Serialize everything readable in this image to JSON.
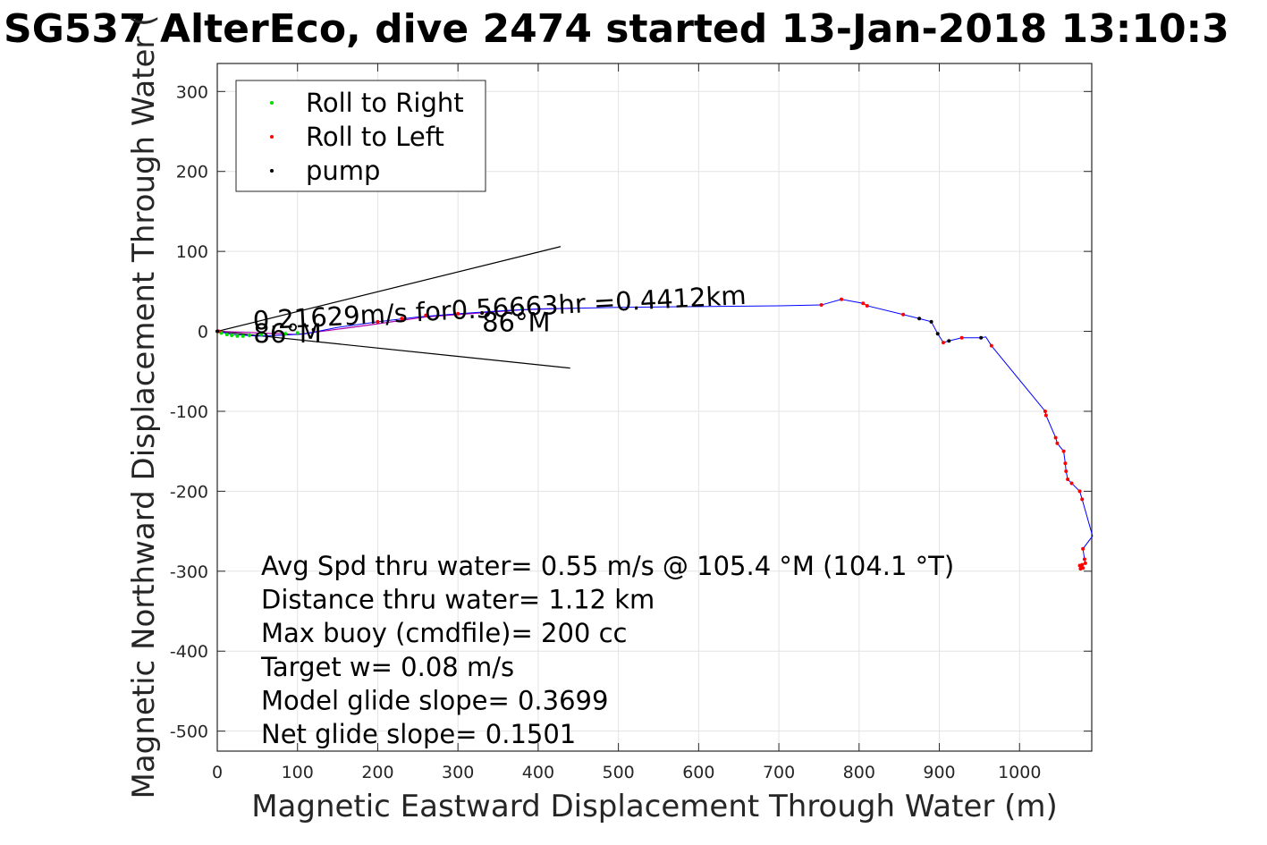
{
  "chart_data": {
    "type": "scatter",
    "title": "SG537 AlterEco, dive 2474 started 13-Jan-2018 13:10:3",
    "xlabel": "Magnetic Eastward Displacement Through Water (m)",
    "ylabel": "Magnetic Northward Displacement Through Water (",
    "xlim": [
      0,
      1090
    ],
    "ylim": [
      -525,
      335
    ],
    "xticks": [
      0,
      100,
      200,
      300,
      400,
      500,
      600,
      700,
      800,
      900,
      1000
    ],
    "yticks": [
      300,
      200,
      100,
      0,
      -100,
      -200,
      -300,
      -400,
      -500
    ],
    "xtick_labels": [
      "0",
      "100",
      "200",
      "300",
      "400",
      "500",
      "600",
      "700",
      "800",
      "900",
      "1000"
    ],
    "ytick_labels": [
      "300",
      "200",
      "100",
      "0",
      "-100",
      "-200",
      "-300",
      "-400",
      "-500"
    ],
    "grid": true,
    "legend_position": "top-left",
    "colors": {
      "track": "#0000ff",
      "roll_right": "#00dd00",
      "roll_left": "#ff0000",
      "pump": "#000000",
      "heading_line": "#000000",
      "leg_line": "#aa00aa",
      "grid": "#e3e3e3",
      "axes": "#262626"
    },
    "series": [
      {
        "name": "Roll to Right",
        "color": "#00dd00",
        "points": [
          [
            5,
            -2
          ],
          [
            12,
            -4
          ],
          [
            18,
            -5
          ],
          [
            25,
            -6
          ],
          [
            32,
            -6
          ],
          [
            40,
            -5
          ],
          [
            55,
            -4
          ],
          [
            70,
            -3
          ],
          [
            85,
            -3
          ],
          [
            100,
            -2
          ],
          [
            380,
            29
          ]
        ]
      },
      {
        "name": "Roll to Left",
        "color": "#ff0000",
        "points": [
          [
            2,
            0
          ],
          [
            120,
            2
          ],
          [
            200,
            12
          ],
          [
            230,
            16
          ],
          [
            260,
            20
          ],
          [
            300,
            22
          ],
          [
            330,
            23
          ],
          [
            753,
            33
          ],
          [
            778,
            40
          ],
          [
            805,
            35
          ],
          [
            810,
            32
          ],
          [
            855,
            21
          ],
          [
            905,
            -14
          ],
          [
            928,
            -8
          ],
          [
            965,
            -18
          ],
          [
            1032,
            -100
          ],
          [
            1033,
            -105
          ],
          [
            1045,
            -133
          ],
          [
            1047,
            -140
          ],
          [
            1055,
            -150
          ],
          [
            1057,
            -165
          ],
          [
            1058,
            -175
          ],
          [
            1060,
            -185
          ],
          [
            1065,
            -190
          ],
          [
            1075,
            -200
          ],
          [
            1078,
            -210
          ],
          [
            1079,
            -272
          ],
          [
            1081,
            -285
          ],
          [
            1082,
            -290
          ],
          [
            1078,
            -292
          ],
          [
            1079,
            -296
          ],
          [
            1075,
            -293
          ],
          [
            1076,
            -297
          ]
        ]
      },
      {
        "name": "pump",
        "color": "#000000",
        "points": [
          [
            0,
            0
          ],
          [
            120,
            2
          ],
          [
            330,
            23
          ],
          [
            875,
            16
          ],
          [
            890,
            12
          ],
          [
            898,
            -3
          ],
          [
            912,
            -12
          ],
          [
            952,
            -8
          ]
        ]
      }
    ],
    "track": [
      [
        0,
        0
      ],
      [
        20,
        -4
      ],
      [
        50,
        -6
      ],
      [
        80,
        -5
      ],
      [
        110,
        -3
      ],
      [
        150,
        5
      ],
      [
        200,
        12
      ],
      [
        250,
        18
      ],
      [
        300,
        22
      ],
      [
        360,
        26
      ],
      [
        400,
        28
      ],
      [
        500,
        30
      ],
      [
        600,
        31
      ],
      [
        700,
        32
      ],
      [
        753,
        33
      ],
      [
        778,
        40
      ],
      [
        805,
        35
      ],
      [
        810,
        32
      ],
      [
        855,
        21
      ],
      [
        875,
        16
      ],
      [
        890,
        12
      ],
      [
        898,
        -3
      ],
      [
        905,
        -14
      ],
      [
        912,
        -12
      ],
      [
        928,
        -8
      ],
      [
        952,
        -8
      ],
      [
        958,
        -7
      ],
      [
        965,
        -18
      ],
      [
        1032,
        -100
      ],
      [
        1033,
        -105
      ],
      [
        1045,
        -133
      ],
      [
        1047,
        -140
      ],
      [
        1055,
        -150
      ],
      [
        1057,
        -165
      ],
      [
        1058,
        -175
      ],
      [
        1060,
        -185
      ],
      [
        1065,
        -190
      ],
      [
        1075,
        -200
      ],
      [
        1078,
        -210
      ],
      [
        1091,
        -256
      ],
      [
        1079,
        -272
      ],
      [
        1081,
        -285
      ],
      [
        1082,
        -290
      ],
      [
        1078,
        -292
      ],
      [
        1079,
        -296
      ],
      [
        1075,
        -293
      ],
      [
        1076,
        -297
      ]
    ],
    "leg_line": [
      [
        0,
        0
      ],
      [
        100,
        -4
      ],
      [
        190,
        8
      ],
      [
        260,
        18
      ],
      [
        380,
        27
      ],
      [
        440,
        29
      ]
    ],
    "heading_lines": [
      {
        "from": [
          0,
          0
        ],
        "to": [
          428,
          106
        ]
      },
      {
        "from": [
          0,
          0
        ],
        "to": [
          440,
          -46
        ]
      }
    ],
    "annotations": [
      {
        "text": "0.21629m/s for0.56663hr =0.4412km",
        "x": 45,
        "y": 2
      },
      {
        "text": "86°M",
        "x": 45,
        "y": -14
      },
      {
        "text": "86°M",
        "x": 330,
        "y": 0
      }
    ],
    "stats": [
      "Avg Spd thru water=  0.55 m/s @ 105.4 °M (104.1 °T)",
      "Distance thru water=  1.12 km",
      "Max buoy (cmdfile)= 200 cc",
      "Target w= 0.08 m/s",
      "Model glide slope= 0.3699",
      "Net glide slope= 0.1501"
    ]
  }
}
